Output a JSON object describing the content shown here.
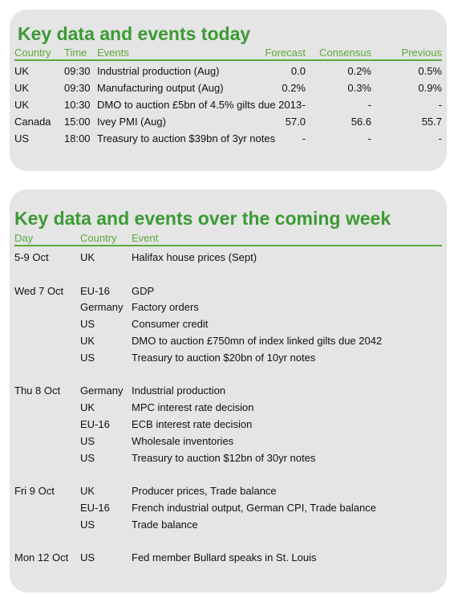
{
  "today": {
    "title": "Key data and events today",
    "headers": [
      "Country",
      "Time",
      "Events",
      "Forecast",
      "Consensus",
      "Previous"
    ],
    "rows": [
      [
        "UK",
        "09:30",
        "Industrial production (Aug)",
        "0.0",
        "0.2%",
        "0.5%"
      ],
      [
        "UK",
        "09:30",
        "Manufacturing output (Aug)",
        "0.2%",
        "0.3%",
        "0.9%"
      ],
      [
        "UK",
        "10:30",
        "DMO to auction £5bn of 4.5% gilts due 2013",
        "-",
        "-",
        "-"
      ],
      [
        "Canada",
        "15:00",
        "Ivey PMI (Aug)",
        "57.0",
        "56.6",
        "55.7"
      ],
      [
        "US",
        "18:00",
        "Treasury to auction $39bn of 3yr notes",
        "-",
        "-",
        "-"
      ]
    ]
  },
  "week": {
    "title": "Key data and events over the coming week",
    "headers": [
      "Day",
      "Country",
      "Event"
    ],
    "groups": [
      {
        "day": "5-9 Oct",
        "rows": [
          [
            "UK",
            "Halifax house prices (Sept)"
          ]
        ]
      },
      {
        "day": "Wed 7 Oct",
        "rows": [
          [
            "EU-16",
            "GDP"
          ],
          [
            "Germany",
            "Factory orders"
          ],
          [
            "US",
            "Consumer credit"
          ],
          [
            "UK",
            "DMO to auction £750mn of index linked gilts due 2042"
          ],
          [
            "US",
            "Treasury to auction $20bn of 10yr notes"
          ]
        ]
      },
      {
        "day": "Thu 8 Oct",
        "rows": [
          [
            "Germany",
            "Industrial production"
          ],
          [
            "UK",
            "MPC interest rate decision"
          ],
          [
            "EU-16",
            "ECB interest rate decision"
          ],
          [
            "US",
            "Wholesale inventories"
          ],
          [
            "US",
            "Treasury to auction $12bn of 30yr notes"
          ]
        ]
      },
      {
        "day": "Fri 9 Oct",
        "rows": [
          [
            "UK",
            "Producer prices, Trade balance"
          ],
          [
            "EU-16",
            "French industrial output, German CPI, Trade balance"
          ],
          [
            "US",
            "Trade balance"
          ]
        ]
      },
      {
        "day": "Mon 12 Oct",
        "rows": [
          [
            "US",
            "Fed member Bullard speaks in St. Louis"
          ]
        ]
      }
    ]
  }
}
